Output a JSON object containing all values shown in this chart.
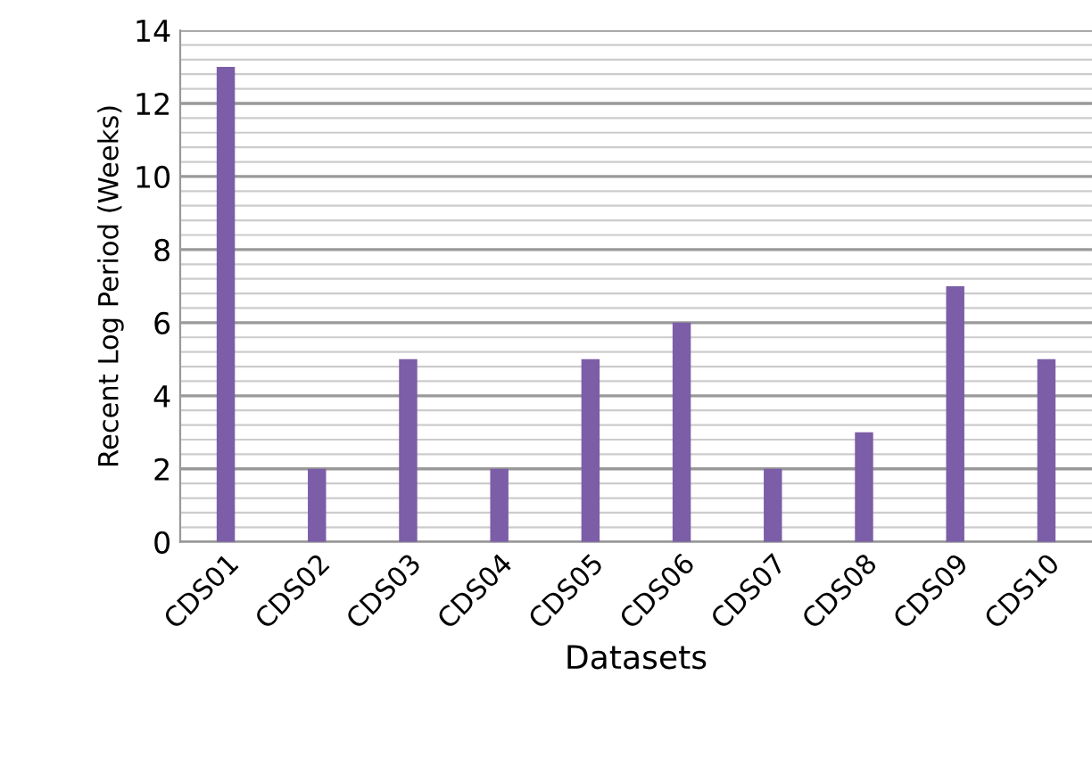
{
  "chart_data": {
    "type": "bar",
    "xlabel": "Datasets",
    "ylabel": "Recent Log Period (Weeks)",
    "categories": [
      "CDS01",
      "CDS02",
      "CDS03",
      "CDS04",
      "CDS05",
      "CDS06",
      "CDS07",
      "CDS08",
      "CDS09",
      "CDS10"
    ],
    "values": [
      13,
      2,
      5,
      2,
      5,
      6,
      2,
      3,
      7,
      5
    ],
    "color": "#7b5ea7",
    "ylim": [
      0,
      14
    ],
    "yticks": [
      0,
      2,
      4,
      6,
      8,
      10,
      12,
      14
    ],
    "grid": "y"
  }
}
